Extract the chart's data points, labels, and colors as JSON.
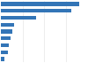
{
  "values": [
    34.5,
    31.0,
    15.5,
    5.9,
    5.0,
    4.2,
    3.6,
    3.2,
    1.4
  ],
  "bar_color": "#3375b7",
  "background_color": "#ffffff",
  "bar_height": 0.55,
  "xlim": [
    0,
    38
  ]
}
